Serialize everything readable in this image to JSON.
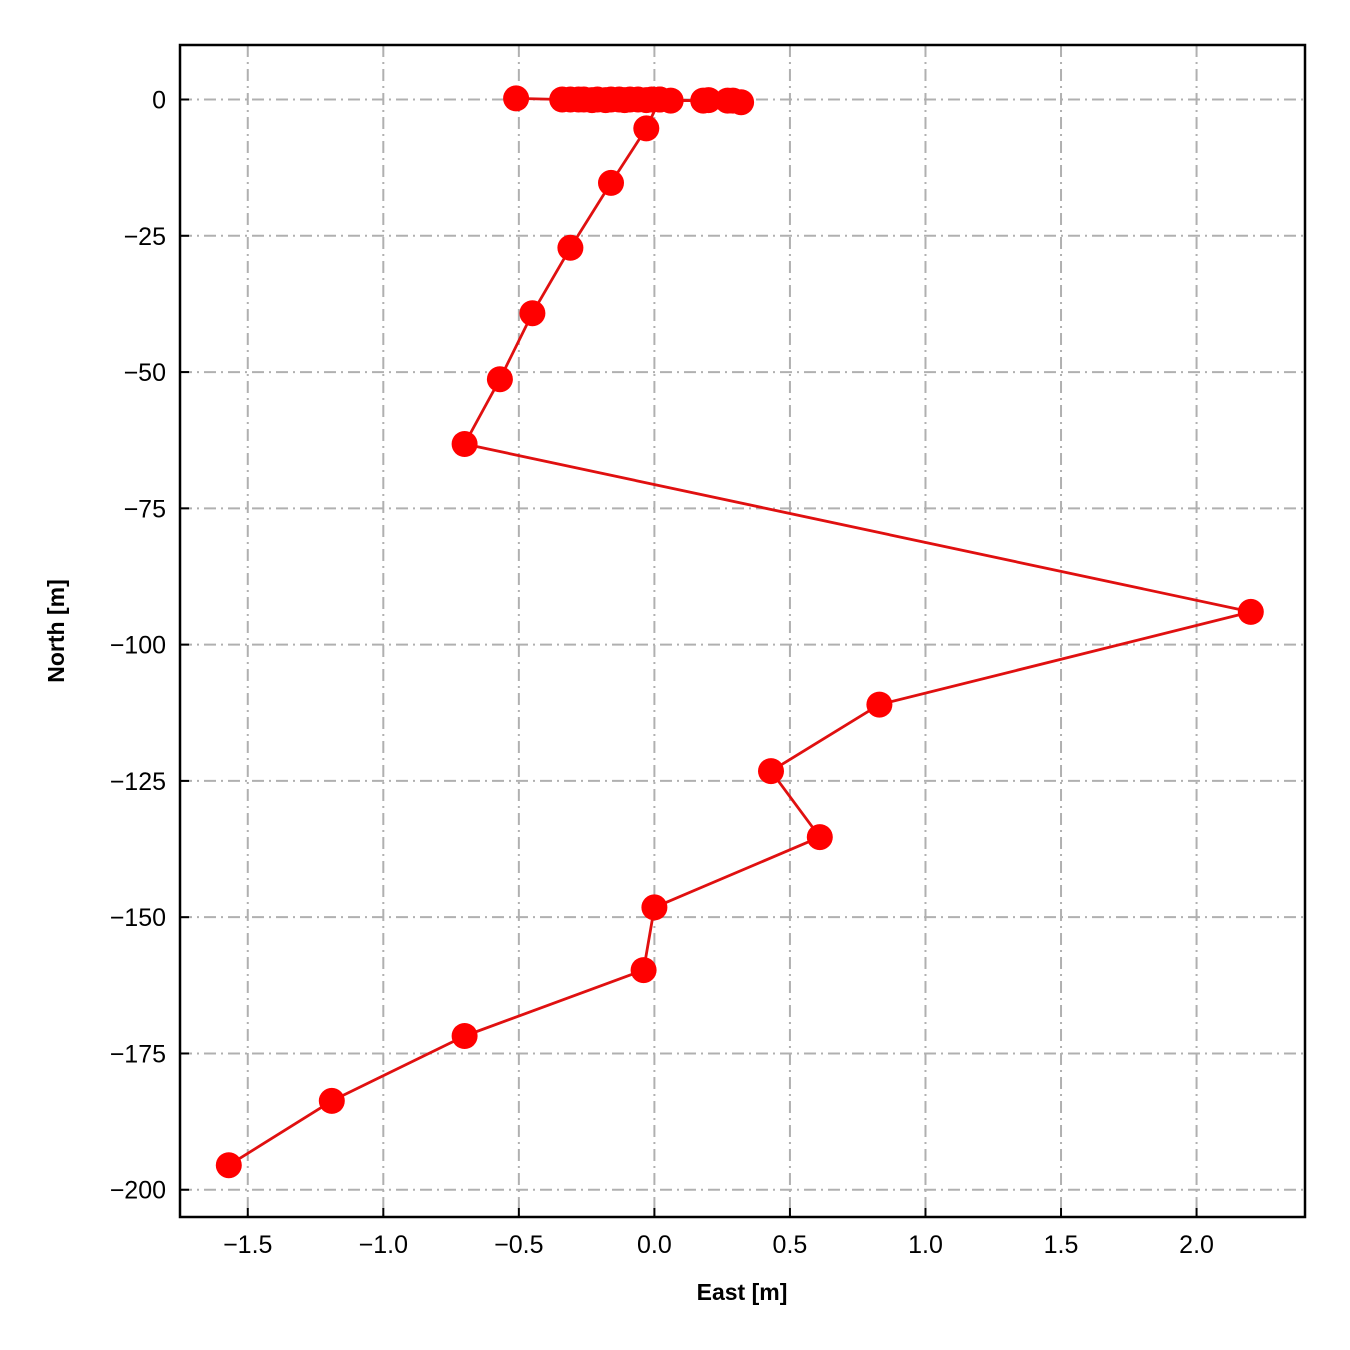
{
  "chart_data": {
    "type": "line",
    "title": "",
    "xlabel": "East [m]",
    "ylabel": "North [m]",
    "xlim": [
      -1.75,
      2.4
    ],
    "ylim": [
      -205,
      10
    ],
    "xticks": [
      -1.5,
      -1.0,
      -0.5,
      0.0,
      0.5,
      1.0,
      1.5,
      2.0
    ],
    "xtick_labels": [
      "−1.5",
      "−1.0",
      "−0.5",
      "0.0",
      "0.5",
      "1.0",
      "1.5",
      "2.0"
    ],
    "yticks": [
      0,
      -25,
      -50,
      -75,
      -100,
      -125,
      -150,
      -175,
      -200
    ],
    "ytick_labels": [
      "0",
      "−25",
      "−50",
      "−75",
      "−100",
      "−125",
      "−150",
      "−175",
      "−200"
    ],
    "grid": true,
    "grid_style": "dashdot",
    "series": [
      {
        "color": "#ff0000",
        "line_color": "#e01010",
        "marker": "circle",
        "points": [
          [
            -0.51,
            0.2
          ],
          [
            -0.34,
            0.0
          ],
          [
            -0.31,
            0.0
          ],
          [
            -0.28,
            0.0
          ],
          [
            -0.26,
            0.0
          ],
          [
            -0.23,
            -0.1
          ],
          [
            -0.21,
            0.0
          ],
          [
            -0.18,
            -0.1
          ],
          [
            -0.16,
            0.0
          ],
          [
            -0.13,
            0.0
          ],
          [
            -0.11,
            -0.1
          ],
          [
            -0.09,
            0.0
          ],
          [
            -0.06,
            0.0
          ],
          [
            -0.03,
            -0.1
          ],
          [
            -0.01,
            0.0
          ],
          [
            0.02,
            0.0
          ],
          [
            0.06,
            -0.2
          ],
          [
            0.18,
            -0.2
          ],
          [
            0.2,
            -0.1
          ],
          [
            0.27,
            -0.2
          ],
          [
            0.29,
            -0.2
          ],
          [
            0.32,
            -0.5
          ],
          [
            0.02,
            0.0
          ],
          [
            -0.03,
            -5.3
          ],
          [
            -0.16,
            -15.3
          ],
          [
            -0.31,
            -27.2
          ],
          [
            -0.45,
            -39.2
          ],
          [
            -0.57,
            -51.3
          ],
          [
            -0.7,
            -63.2
          ],
          [
            2.2,
            -94.0
          ],
          [
            0.83,
            -111.0
          ],
          [
            0.43,
            -123.2
          ],
          [
            0.61,
            -135.3
          ],
          [
            0.0,
            -148.2
          ],
          [
            -0.04,
            -159.7
          ],
          [
            -0.7,
            -171.8
          ],
          [
            -1.19,
            -183.7
          ],
          [
            -1.57,
            -195.5
          ]
        ]
      }
    ]
  }
}
